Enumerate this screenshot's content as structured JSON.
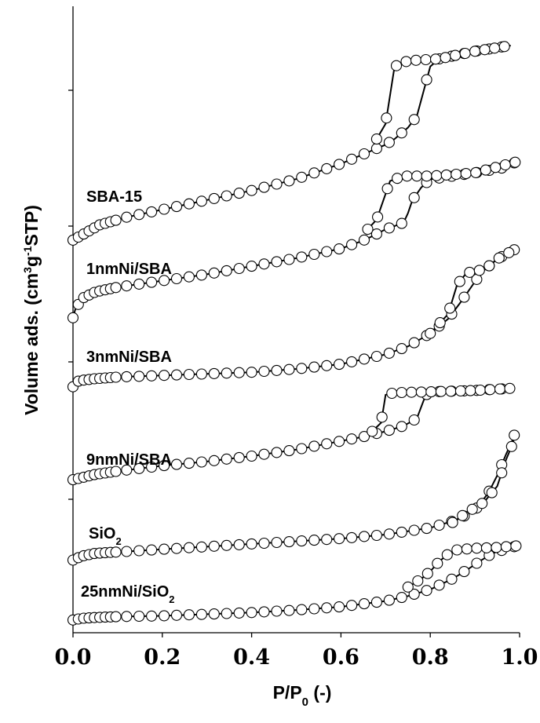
{
  "chart_data": {
    "type": "scatter",
    "xlabel": "P/P0 (-)",
    "xlabel_parts": {
      "main": "P/P",
      "sub": "0",
      "tail": " (-)"
    },
    "ylabel": "Volume ads. (cm3g-1STP)",
    "ylabel_parts": {
      "a": "Volume ads. (cm",
      "sup1": "3",
      "b": "g",
      "sup2": "-1",
      "c": "STP)"
    },
    "xlim": [
      0,
      1
    ],
    "x_ticks": [
      "0.0",
      "0.2",
      "0.4",
      "0.6",
      "0.8",
      "1.0"
    ],
    "grid": false,
    "legend": "none",
    "series": [
      {
        "name": "SBA-15",
        "label_parts": {
          "main": "SBA-15",
          "sub": ""
        },
        "adsorption": [
          [
            0.0,
            0.05
          ],
          [
            0.06,
            0.13
          ],
          [
            0.12,
            0.17
          ],
          [
            0.2,
            0.21
          ],
          [
            0.3,
            0.26
          ],
          [
            0.4,
            0.31
          ],
          [
            0.5,
            0.37
          ],
          [
            0.55,
            0.41
          ],
          [
            0.6,
            0.45
          ],
          [
            0.65,
            0.5
          ],
          [
            0.7,
            0.55
          ],
          [
            0.72,
            0.58
          ],
          [
            0.75,
            0.64
          ],
          [
            0.77,
            0.7
          ],
          [
            0.8,
            0.96
          ],
          [
            0.82,
            1.0
          ],
          [
            0.9,
            1.04
          ],
          [
            0.98,
            1.07
          ]
        ],
        "desorption": [
          [
            0.98,
            1.07
          ],
          [
            0.9,
            1.04
          ],
          [
            0.82,
            1.0
          ],
          [
            0.75,
            0.99
          ],
          [
            0.72,
            0.96
          ],
          [
            0.7,
            0.66
          ],
          [
            0.68,
            0.58
          ]
        ]
      },
      {
        "name": "1nmNi/SBA",
        "label_parts": {
          "main": "1nmNi/SBA",
          "sub": ""
        },
        "adsorption": [
          [
            0.0,
            0.05
          ],
          [
            0.005,
            0.1
          ],
          [
            0.02,
            0.17
          ],
          [
            0.05,
            0.21
          ],
          [
            0.1,
            0.24
          ],
          [
            0.2,
            0.28
          ],
          [
            0.3,
            0.32
          ],
          [
            0.4,
            0.37
          ],
          [
            0.5,
            0.42
          ],
          [
            0.6,
            0.48
          ],
          [
            0.65,
            0.53
          ],
          [
            0.68,
            0.57
          ],
          [
            0.7,
            0.6
          ],
          [
            0.72,
            0.62
          ],
          [
            0.74,
            0.64
          ],
          [
            0.75,
            0.7
          ],
          [
            0.76,
            0.78
          ],
          [
            0.78,
            0.86
          ],
          [
            0.8,
            0.91
          ],
          [
            0.85,
            0.93
          ],
          [
            0.9,
            0.95
          ],
          [
            0.96,
            0.98
          ],
          [
            0.995,
            1.02
          ]
        ],
        "desorption": [
          [
            0.995,
            1.02
          ],
          [
            0.9,
            0.95
          ],
          [
            0.8,
            0.93
          ],
          [
            0.74,
            0.93
          ],
          [
            0.71,
            0.9
          ],
          [
            0.7,
            0.82
          ],
          [
            0.69,
            0.74
          ],
          [
            0.68,
            0.66
          ],
          [
            0.66,
            0.6
          ]
        ]
      },
      {
        "name": "3nmNi/SBA",
        "label_parts": {
          "main": "3nmNi/SBA",
          "sub": ""
        },
        "adsorption": [
          [
            0.0,
            0.05
          ],
          [
            0.005,
            0.08
          ],
          [
            0.02,
            0.09
          ],
          [
            0.05,
            0.1
          ],
          [
            0.1,
            0.11
          ],
          [
            0.2,
            0.12
          ],
          [
            0.3,
            0.13
          ],
          [
            0.4,
            0.14
          ],
          [
            0.5,
            0.16
          ],
          [
            0.6,
            0.19
          ],
          [
            0.7,
            0.25
          ],
          [
            0.75,
            0.3
          ],
          [
            0.8,
            0.38
          ],
          [
            0.84,
            0.47
          ],
          [
            0.87,
            0.58
          ],
          [
            0.9,
            0.7
          ],
          [
            0.92,
            0.77
          ],
          [
            0.95,
            0.84
          ],
          [
            0.99,
            0.9
          ]
        ],
        "desorption": [
          [
            0.99,
            0.9
          ],
          [
            0.95,
            0.84
          ],
          [
            0.92,
            0.77
          ],
          [
            0.9,
            0.77
          ],
          [
            0.88,
            0.75
          ],
          [
            0.86,
            0.68
          ],
          [
            0.84,
            0.5
          ],
          [
            0.82,
            0.44
          ],
          [
            0.8,
            0.38
          ]
        ]
      },
      {
        "name": "9nmNi/SBA",
        "label_parts": {
          "main": "9nmNi/SBA",
          "sub": ""
        },
        "adsorption": [
          [
            0.0,
            0.05
          ],
          [
            0.05,
            0.1
          ],
          [
            0.1,
            0.13
          ],
          [
            0.2,
            0.18
          ],
          [
            0.3,
            0.22
          ],
          [
            0.4,
            0.27
          ],
          [
            0.5,
            0.33
          ],
          [
            0.55,
            0.37
          ],
          [
            0.6,
            0.41
          ],
          [
            0.65,
            0.45
          ],
          [
            0.7,
            0.5
          ],
          [
            0.74,
            0.55
          ],
          [
            0.77,
            0.62
          ],
          [
            0.79,
            0.84
          ],
          [
            0.82,
            0.87
          ],
          [
            0.9,
            0.88
          ],
          [
            0.98,
            0.9
          ]
        ],
        "desorption": [
          [
            0.98,
            0.9
          ],
          [
            0.9,
            0.88
          ],
          [
            0.82,
            0.87
          ],
          [
            0.72,
            0.86
          ],
          [
            0.7,
            0.84
          ],
          [
            0.69,
            0.58
          ],
          [
            0.67,
            0.5
          ]
        ]
      },
      {
        "name": "SiO2",
        "label_parts": {
          "main": "SiO",
          "sub": "2"
        },
        "adsorption": [
          [
            0.0,
            0.05
          ],
          [
            0.02,
            0.08
          ],
          [
            0.05,
            0.1
          ],
          [
            0.1,
            0.11
          ],
          [
            0.2,
            0.13
          ],
          [
            0.3,
            0.15
          ],
          [
            0.4,
            0.17
          ],
          [
            0.5,
            0.19
          ],
          [
            0.6,
            0.21
          ],
          [
            0.7,
            0.24
          ],
          [
            0.8,
            0.29
          ],
          [
            0.86,
            0.35
          ],
          [
            0.9,
            0.42
          ],
          [
            0.93,
            0.55
          ],
          [
            0.95,
            0.68
          ],
          [
            0.97,
            0.84
          ],
          [
            0.985,
            0.95
          ],
          [
            0.99,
            1.0
          ]
        ],
        "desorption": [
          [
            0.99,
            1.0
          ],
          [
            0.985,
            0.92
          ],
          [
            0.97,
            0.8
          ],
          [
            0.95,
            0.6
          ],
          [
            0.92,
            0.48
          ],
          [
            0.88,
            0.4
          ],
          [
            0.85,
            0.33
          ]
        ]
      },
      {
        "name": "25nmNi/SiO2",
        "label_parts": {
          "main": "25nmNi/SiO",
          "sub": "2"
        },
        "adsorption": [
          [
            0.0,
            0.05
          ],
          [
            0.02,
            0.07
          ],
          [
            0.05,
            0.08
          ],
          [
            0.1,
            0.09
          ],
          [
            0.2,
            0.1
          ],
          [
            0.3,
            0.12
          ],
          [
            0.4,
            0.14
          ],
          [
            0.5,
            0.17
          ],
          [
            0.6,
            0.21
          ],
          [
            0.7,
            0.28
          ],
          [
            0.75,
            0.34
          ],
          [
            0.8,
            0.42
          ],
          [
            0.85,
            0.55
          ],
          [
            0.88,
            0.65
          ],
          [
            0.91,
            0.76
          ],
          [
            0.94,
            0.86
          ],
          [
            0.97,
            0.91
          ],
          [
            0.995,
            0.95
          ]
        ],
        "desorption": [
          [
            0.995,
            0.95
          ],
          [
            0.95,
            0.93
          ],
          [
            0.9,
            0.92
          ],
          [
            0.86,
            0.9
          ],
          [
            0.84,
            0.85
          ],
          [
            0.82,
            0.76
          ],
          [
            0.8,
            0.64
          ],
          [
            0.78,
            0.55
          ],
          [
            0.75,
            0.45
          ]
        ]
      }
    ]
  }
}
